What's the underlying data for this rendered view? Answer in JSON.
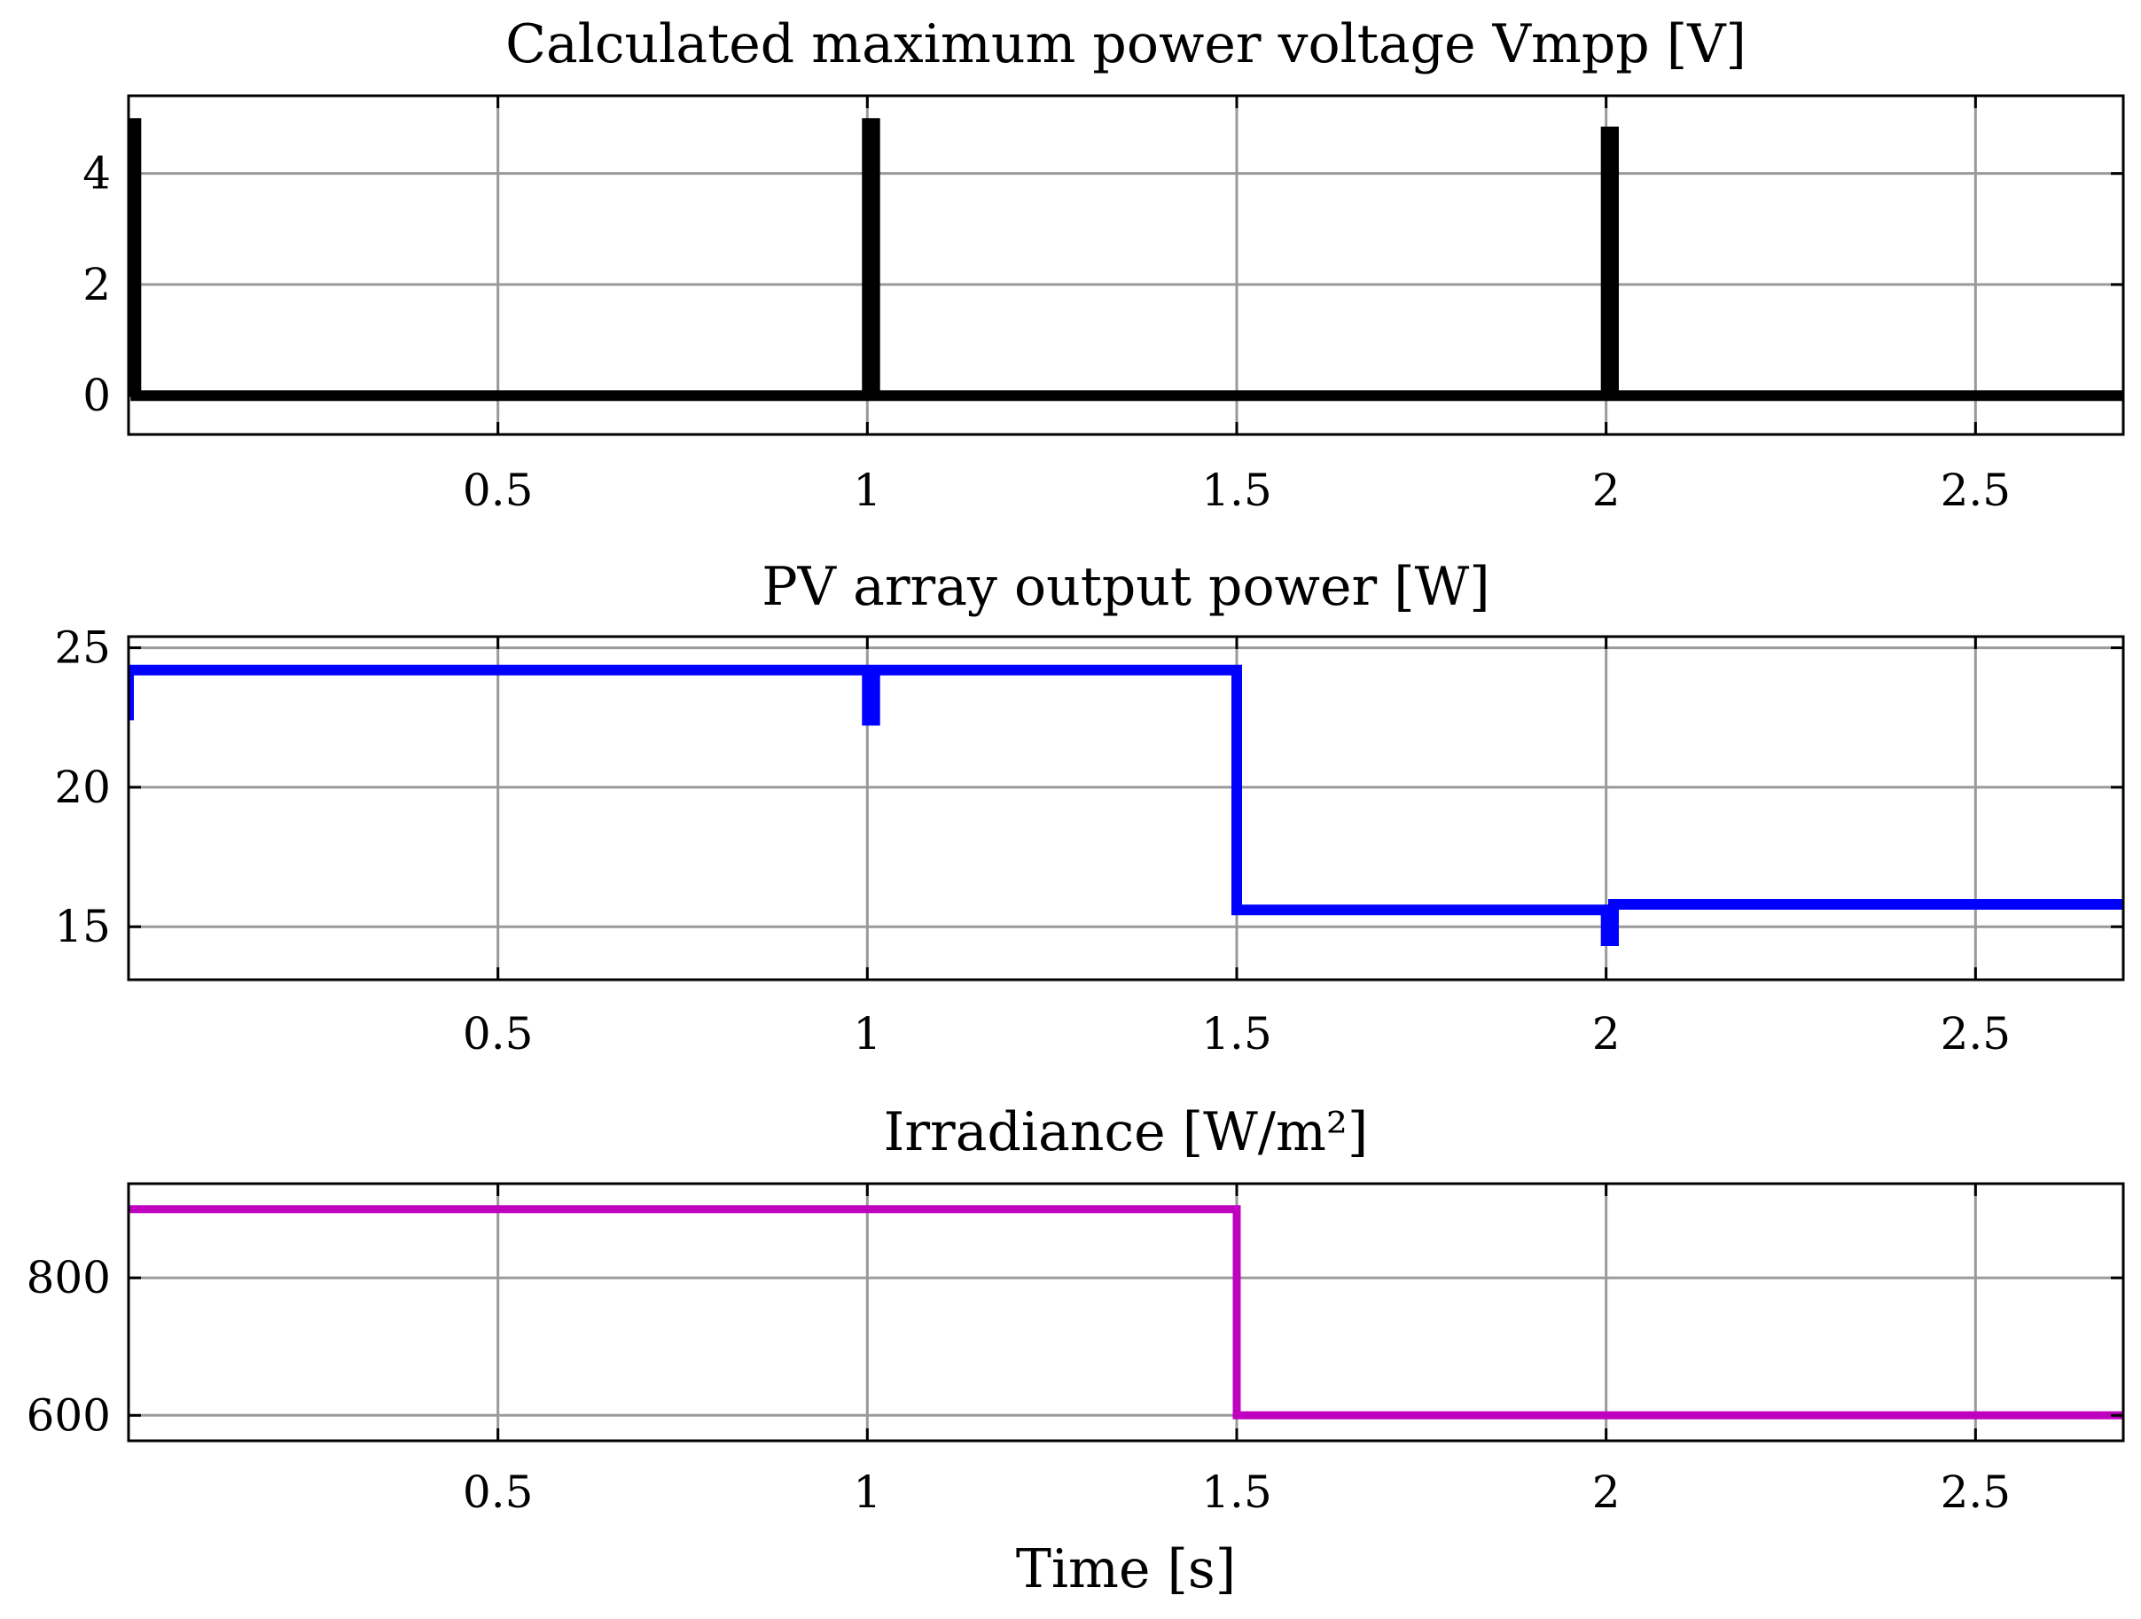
{
  "chart_data": [
    {
      "type": "line",
      "title": "Calculated maximum power voltage Vmpp [V]",
      "xlabel": "",
      "ylabel": "",
      "xlim": [
        0,
        2.7
      ],
      "ylim": [
        -0.7,
        5.4
      ],
      "xticks": [
        0.5,
        1,
        1.5,
        2,
        2.5
      ],
      "xtick_labels": [
        "0.5",
        "1",
        "1.5",
        "2",
        "2.5"
      ],
      "yticks": [
        0,
        2,
        4
      ],
      "ytick_labels": [
        "0",
        "2",
        "4"
      ],
      "grid": true,
      "series": [
        {
          "name": "Vmpp",
          "color": "#000000",
          "x": [
            0,
            0,
            0.01,
            0.01,
            1.0,
            1.0,
            1.01,
            1.01,
            2.0,
            2.0,
            2.01,
            2.01,
            2.7
          ],
          "y": [
            0,
            4.9,
            4.9,
            0,
            0,
            4.9,
            4.9,
            0,
            0,
            4.75,
            4.75,
            0,
            0
          ]
        }
      ]
    },
    {
      "type": "line",
      "title": "PV array output power [W]",
      "xlabel": "",
      "ylabel": "",
      "xlim": [
        0,
        2.7
      ],
      "ylim": [
        13.1,
        25.4
      ],
      "xticks": [
        0.5,
        1,
        1.5,
        2,
        2.5
      ],
      "xtick_labels": [
        "0.5",
        "1",
        "1.5",
        "2",
        "2.5"
      ],
      "yticks": [
        15,
        20,
        25
      ],
      "ytick_labels": [
        "15",
        "20",
        "25"
      ],
      "grid": true,
      "series": [
        {
          "name": "PV power",
          "color": "#0000ff",
          "x": [
            0,
            0,
            0.01,
            0.01,
            1.0,
            1.0,
            1.01,
            1.01,
            1.5,
            1.5,
            2.0,
            2.0,
            2.01,
            2.01,
            2.7
          ],
          "y": [
            22.4,
            24.2,
            24.2,
            24.2,
            24.2,
            22.4,
            22.4,
            24.2,
            24.2,
            15.6,
            15.6,
            14.5,
            14.5,
            15.8,
            15.8
          ]
        }
      ]
    },
    {
      "type": "line",
      "title": "Irradiance [W/m²]",
      "xlabel": "Time [s]",
      "ylabel": "",
      "xlim": [
        0,
        2.7
      ],
      "ylim": [
        563,
        937
      ],
      "xticks": [
        0.5,
        1,
        1.5,
        2,
        2.5
      ],
      "xtick_labels": [
        "0.5",
        "1",
        "1.5",
        "2",
        "2.5"
      ],
      "yticks": [
        600,
        800
      ],
      "ytick_labels": [
        "600",
        "800"
      ],
      "grid": true,
      "series": [
        {
          "name": "Irradiance",
          "color": "#bf00bf",
          "x": [
            0,
            1.5,
            1.5,
            2.7
          ],
          "y": [
            900,
            900,
            600,
            600
          ]
        }
      ]
    }
  ]
}
